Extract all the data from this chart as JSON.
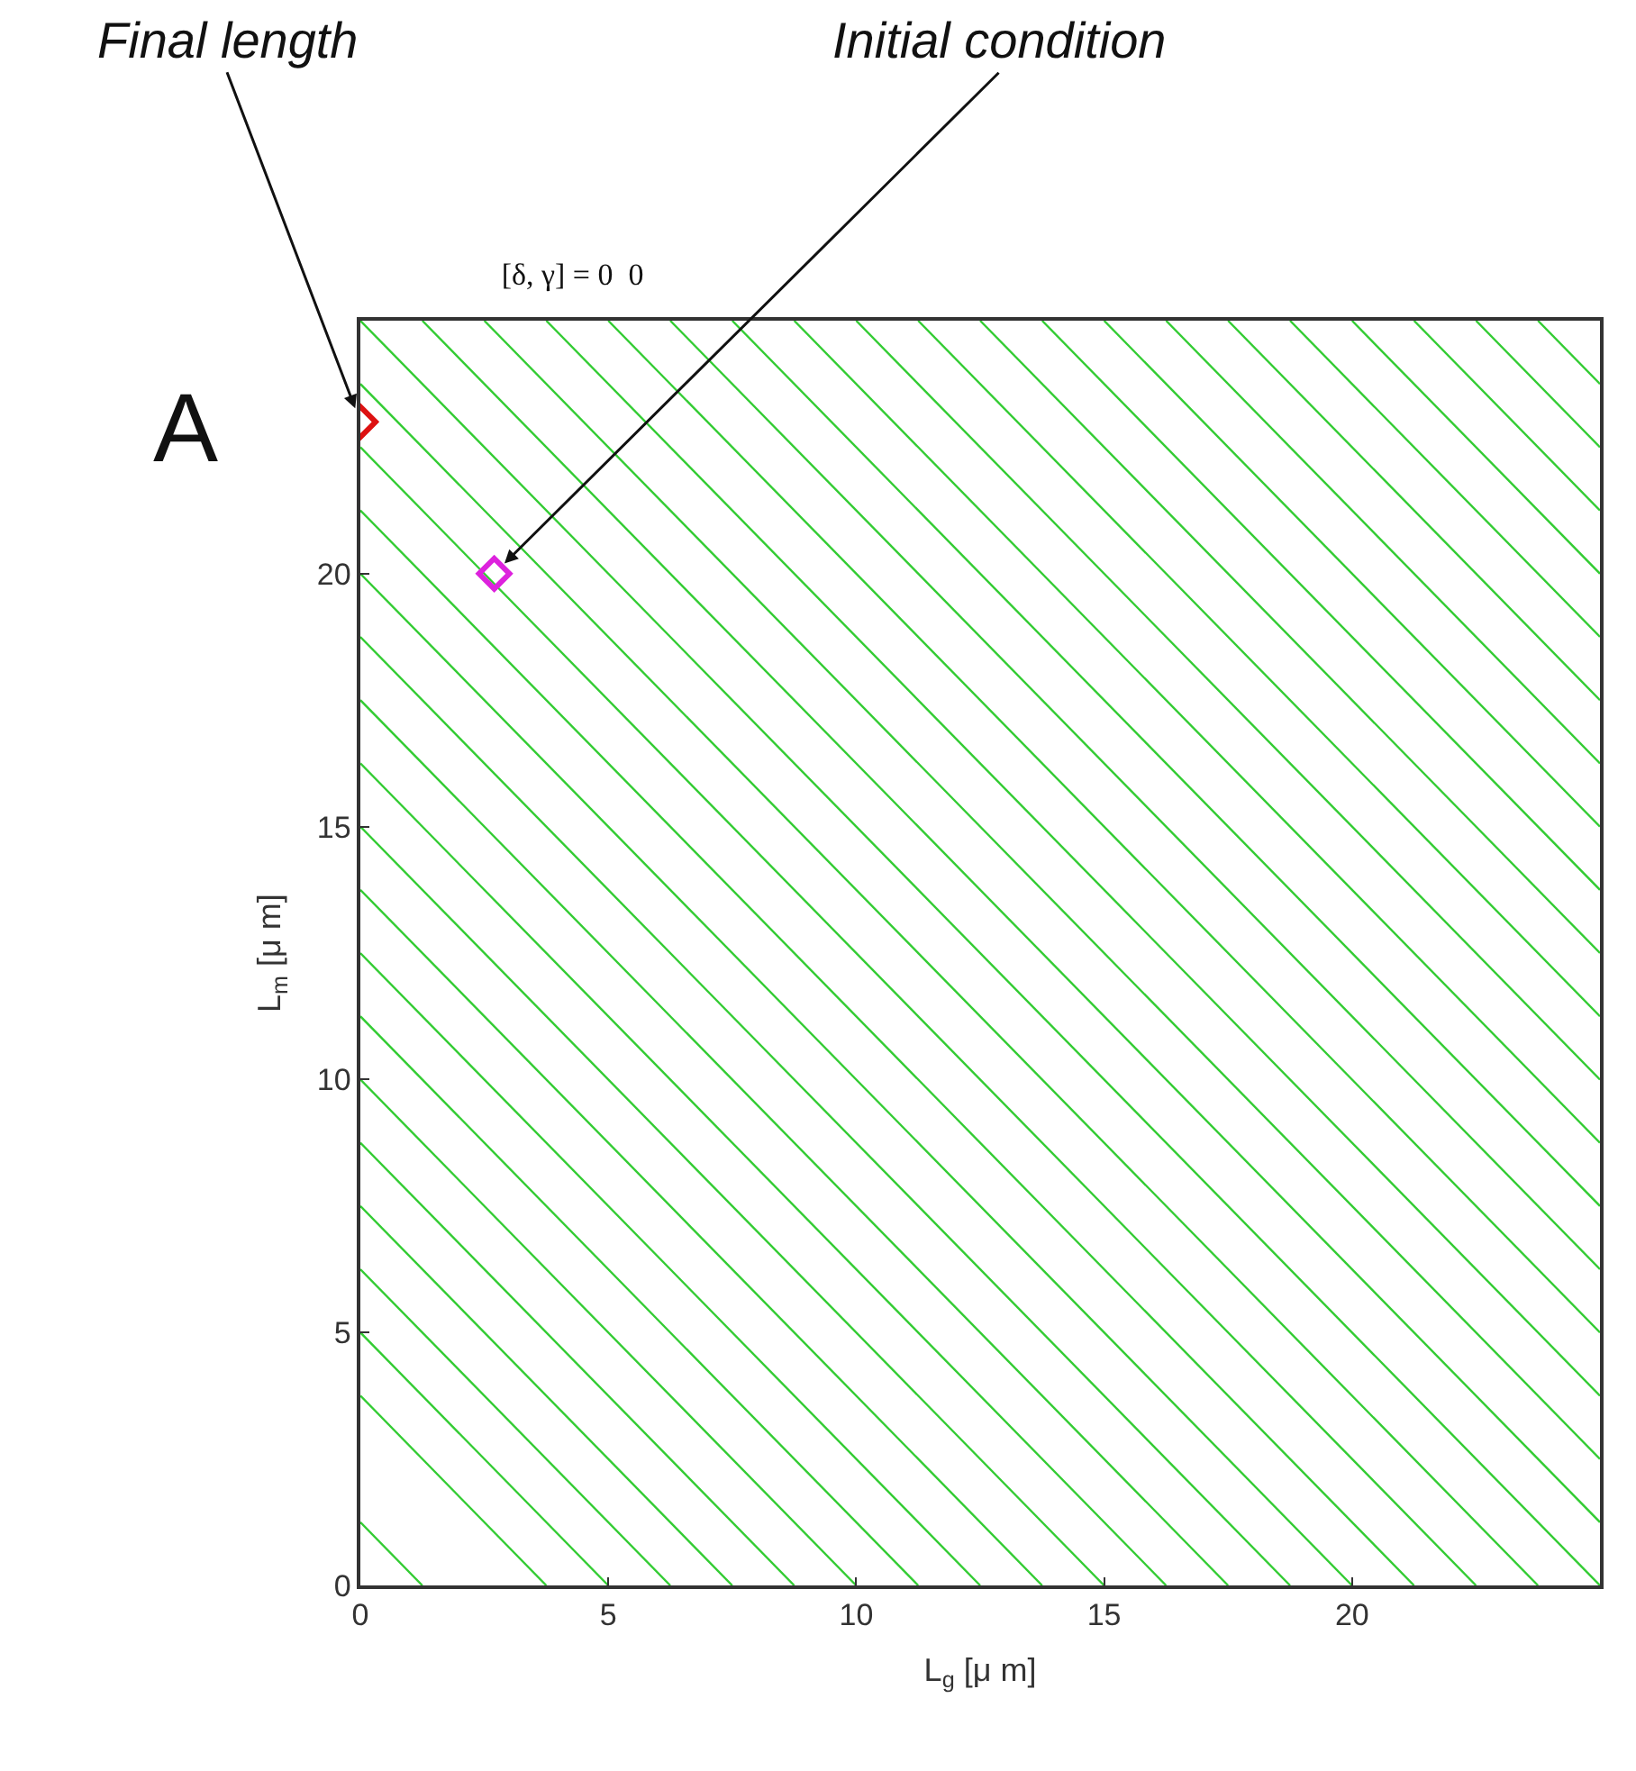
{
  "chart_data": {
    "type": "line",
    "title": "[δ, γ] = 0  0",
    "xlabel": "L$_{g}$ [μ m]",
    "ylabel": "L$_{m}$ [μ m]",
    "xlim": [
      0,
      25
    ],
    "ylim": [
      0,
      25
    ],
    "xticks": [
      0,
      5,
      10,
      15,
      20
    ],
    "yticks": [
      0,
      5,
      10,
      15,
      20
    ],
    "marker": "none",
    "line_style": "solid",
    "annotations": [
      "A",
      {
        "text": "Final length",
        "x": 0,
        "y": 23
      },
      {
        "text": "Initial condition",
        "x": 2.7,
        "y": 20
      }
    ],
    "series": [
      {
        "color": "#33cc33",
        "x": [
          0,
          1.25
        ],
        "values": [
          1.25,
          0
        ]
      },
      {
        "color": "#33cc33",
        "x": [
          0,
          3.75
        ],
        "values": [
          3.75,
          0
        ]
      },
      {
        "color": "#33cc33",
        "x": [
          0,
          5
        ],
        "values": [
          5,
          0
        ]
      },
      {
        "color": "#33cc33",
        "x": [
          0,
          6.25
        ],
        "values": [
          6.25,
          0
        ]
      },
      {
        "color": "#33cc33",
        "x": [
          0,
          7.5
        ],
        "values": [
          7.5,
          0
        ]
      },
      {
        "color": "#33cc33",
        "x": [
          0,
          8.75
        ],
        "values": [
          8.75,
          0
        ]
      },
      {
        "color": "#33cc33",
        "x": [
          0,
          10
        ],
        "values": [
          10,
          0
        ]
      },
      {
        "color": "#33cc33",
        "x": [
          0,
          11.25
        ],
        "values": [
          11.25,
          0
        ]
      },
      {
        "color": "#33cc33",
        "x": [
          0,
          12.5
        ],
        "values": [
          12.5,
          0
        ]
      },
      {
        "color": "#33cc33",
        "x": [
          0,
          13.75
        ],
        "values": [
          13.75,
          0
        ]
      },
      {
        "color": "#33cc33",
        "x": [
          0,
          15
        ],
        "values": [
          15,
          0
        ]
      },
      {
        "color": "#33cc33",
        "x": [
          0,
          16.25
        ],
        "values": [
          16.25,
          0
        ]
      },
      {
        "color": "#33cc33",
        "x": [
          0,
          17.5
        ],
        "values": [
          17.5,
          0
        ]
      },
      {
        "color": "#33cc33",
        "x": [
          0,
          18.75
        ],
        "values": [
          18.75,
          0
        ]
      },
      {
        "color": "#33cc33",
        "x": [
          0,
          20
        ],
        "values": [
          20,
          0
        ]
      },
      {
        "color": "#33cc33",
        "x": [
          0,
          21.25
        ],
        "values": [
          21.25,
          0
        ]
      },
      {
        "color": "#33cc33",
        "x": [
          0,
          22.5
        ],
        "values": [
          22.5,
          0
        ]
      },
      {
        "color": "#33cc33",
        "x": [
          0,
          23.75
        ],
        "values": [
          23.75,
          0
        ]
      },
      {
        "color": "#33cc33",
        "x": [
          0,
          25
        ],
        "values": [
          25,
          0
        ]
      },
      {
        "color": "#33cc33",
        "x": [
          1.25,
          25
        ],
        "values": [
          25,
          1.25
        ]
      },
      {
        "color": "#33cc33",
        "x": [
          2.5,
          25
        ],
        "values": [
          25,
          2.5
        ]
      },
      {
        "color": "#33cc33",
        "x": [
          3.75,
          25
        ],
        "values": [
          25,
          3.75
        ]
      },
      {
        "color": "#33cc33",
        "x": [
          5,
          25
        ],
        "values": [
          25,
          5
        ]
      },
      {
        "color": "#33cc33",
        "x": [
          6.25,
          25
        ],
        "values": [
          25,
          6.25
        ]
      },
      {
        "color": "#33cc33",
        "x": [
          7.5,
          25
        ],
        "values": [
          25,
          7.5
        ]
      },
      {
        "color": "#33cc33",
        "x": [
          8.75,
          25
        ],
        "values": [
          25,
          8.75
        ]
      },
      {
        "color": "#33cc33",
        "x": [
          10,
          25
        ],
        "values": [
          25,
          10
        ]
      },
      {
        "color": "#33cc33",
        "x": [
          11.25,
          25
        ],
        "values": [
          25,
          11.25
        ]
      },
      {
        "color": "#33cc33",
        "x": [
          12.5,
          25
        ],
        "values": [
          25,
          12.5
        ]
      },
      {
        "color": "#33cc33",
        "x": [
          13.75,
          25
        ],
        "values": [
          25,
          13.75
        ]
      },
      {
        "color": "#33cc33",
        "x": [
          15,
          25
        ],
        "values": [
          25,
          15
        ]
      },
      {
        "color": "#33cc33",
        "x": [
          16.25,
          25
        ],
        "values": [
          25,
          16.25
        ]
      },
      {
        "color": "#33cc33",
        "x": [
          17.5,
          25
        ],
        "values": [
          25,
          17.5
        ]
      },
      {
        "color": "#33cc33",
        "x": [
          18.75,
          25
        ],
        "values": [
          25,
          18.75
        ]
      },
      {
        "color": "#33cc33",
        "x": [
          20,
          25
        ],
        "values": [
          25,
          20
        ]
      },
      {
        "color": "#33cc33",
        "x": [
          21.25,
          25
        ],
        "values": [
          25,
          21.25
        ]
      },
      {
        "color": "#33cc33",
        "x": [
          22.5,
          25
        ],
        "values": [
          25,
          22.5
        ]
      },
      {
        "color": "#33cc33",
        "x": [
          23.75,
          25
        ],
        "values": [
          25,
          23.75
        ]
      },
      {
        "type": "scatter",
        "marker": "diamond",
        "color": "#dd1111",
        "x": [
          0
        ],
        "values": [
          23
        ]
      },
      {
        "type": "scatter",
        "marker": "diamond",
        "color": "#dd22dd",
        "x": [
          2.7
        ],
        "values": [
          20
        ]
      }
    ]
  }
}
